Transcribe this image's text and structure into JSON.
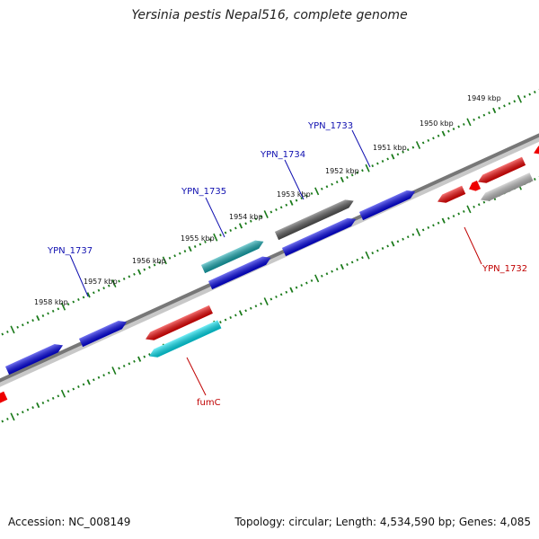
{
  "header": {
    "title": "Yersinia pestis Nepal516, complete genome"
  },
  "footer": {
    "accession": "Accession: NC_008149",
    "summary": "Topology: circular; Length: 4,534,590 bp; Genes: 4,085"
  },
  "colors": {
    "backbone": "#808080",
    "tick": "#1a7a1a",
    "label_plus": "#1010b0",
    "label_minus": "#c00000",
    "gene_blue": "#0000e6",
    "gene_red": "#ee0000",
    "gene_cyan": "#00c8d8",
    "gene_dark_teal": "#14a8b0",
    "gene_gray": "#666666",
    "gene_lightgray": "#b8b8b8"
  },
  "kbp_labels": [
    "1949 kbp",
    "1950 kbp",
    "1951 kbp",
    "1952 kbp",
    "1953 kbp",
    "1954 kbp",
    "1955 kbp",
    "1956 kbp",
    "1957 kbp",
    "1958 kbp"
  ],
  "gene_labels": {
    "ypn_1733": "YPN_1733",
    "ypn_1734": "YPN_1734",
    "ypn_1735": "YPN_1735",
    "ypn_1737": "YPN_1737",
    "ypn_1732": "YPN_1732",
    "fumc": "fumC"
  }
}
